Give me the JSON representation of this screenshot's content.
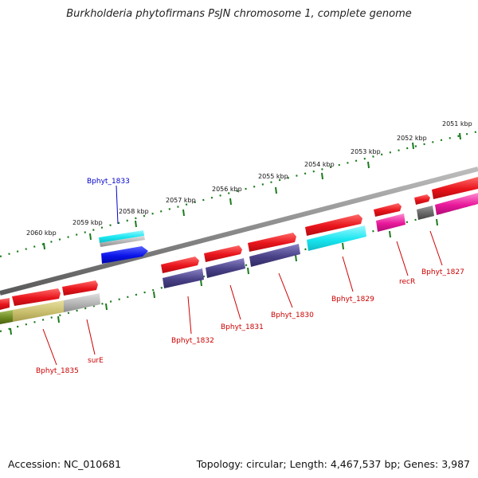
{
  "title": "Burkholderia phytofirmans PsJN chromosome 1, complete genome",
  "accession_label": "Accession: NC_010681",
  "topology_label": "Topology: circular; Length: 4,467,537 bp; Genes: 3,987",
  "scale": {
    "unit": "kbp",
    "ticks": [
      "2051 kbp",
      "2052 kbp",
      "2053 kbp",
      "2054 kbp",
      "2055 kbp",
      "2056 kbp",
      "2057 kbp",
      "2058 kbp",
      "2059 kbp",
      "2060 kbp"
    ]
  },
  "colors": {
    "gene_red": "#e8141b",
    "gene_purple": "#4a4287",
    "gene_cyan": "#19e6f0",
    "gene_blue": "#0a14e8",
    "gene_magenta": "#e8189a",
    "gene_gray": "#8c8c8c",
    "gene_olive": "#5f8a1a",
    "gene_khaki": "#c8be6e",
    "backbone": "#808080",
    "tick_green": "#1a7a1a",
    "label_red": "#cc0000",
    "label_blue": "#0000cc"
  },
  "genes": [
    {
      "name": "Bphyt_1833",
      "color": "label_blue"
    },
    {
      "name": "Bphyt_1835",
      "color": "label_red"
    },
    {
      "name": "surE",
      "color": "label_red"
    },
    {
      "name": "Bphyt_1832",
      "color": "label_red"
    },
    {
      "name": "Bphyt_1831",
      "color": "label_red"
    },
    {
      "name": "Bphyt_1830",
      "color": "label_red"
    },
    {
      "name": "Bphyt_1829",
      "color": "label_red"
    },
    {
      "name": "recR",
      "color": "label_red"
    },
    {
      "name": "Bphyt_1827",
      "color": "label_red"
    }
  ]
}
